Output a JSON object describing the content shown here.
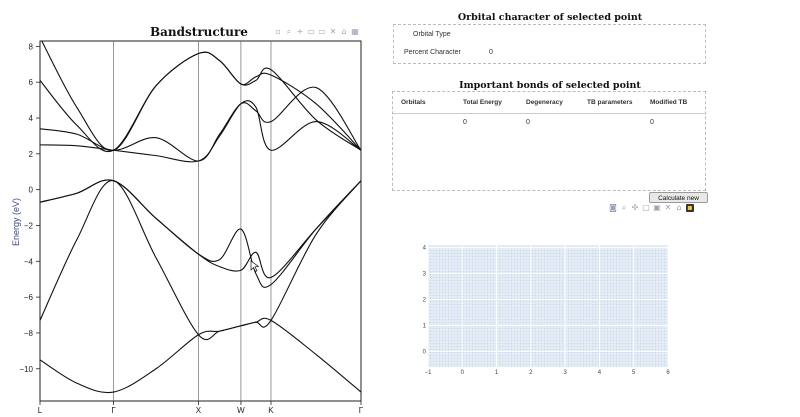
{
  "band_panel": {
    "title": "Bandstructure",
    "modebar_icons": [
      "camera-icon",
      "zoom-icon",
      "pan-icon",
      "zoom-in-icon",
      "zoom-out-icon",
      "autoscale-icon",
      "reset-axes-icon",
      "spike-icon"
    ]
  },
  "orbital_panel": {
    "title": "Orbital character of selected point",
    "rows": [
      {
        "label": "Orbital Type",
        "value": ""
      },
      {
        "label": "Percent Character",
        "value": "0"
      }
    ]
  },
  "bonds_panel": {
    "title": "Important bonds of selected point",
    "columns": [
      "Orbitals",
      "Total Energy",
      "Degeneracy",
      "TB parameters",
      "Modified TB"
    ],
    "rows": [
      [
        "",
        "0",
        "0",
        "",
        "0"
      ]
    ],
    "calc_button": "Calculate new"
  },
  "scatter_panel": {
    "modebar_icons": [
      "camera-icon",
      "zoom-icon",
      "pan-icon",
      "box-select-icon",
      "lasso-icon",
      "reset-icon",
      "autoscale-icon",
      "plotly-logo-icon"
    ]
  },
  "chart_data": [
    {
      "type": "line",
      "title": "Bandstructure",
      "xlabel": "",
      "ylabel": "Energy (eV)",
      "kpoint_labels": [
        "L",
        "Γ",
        "X",
        "W",
        "K",
        "Γ"
      ],
      "kpoint_x": [
        0,
        0.866,
        1.866,
        2.366,
        2.72,
        3.78
      ],
      "xlim": [
        0,
        3.78
      ],
      "ylim": [
        -11.8,
        8.3
      ],
      "yticks": [
        8,
        6,
        4,
        2,
        0,
        -2,
        -4,
        -6,
        -8,
        -10
      ],
      "ytick_labels": [
        "8",
        "6",
        "4",
        "2",
        "0",
        "−2",
        "−4",
        "−6",
        "−8",
        "−10"
      ],
      "series": [
        {
          "x": [
            0,
            0.433,
            0.866,
            1.366,
            1.866,
            2.116,
            2.366,
            2.543,
            2.72,
            3.25,
            3.78
          ],
          "y": [
            -9.5,
            -10.8,
            -11.3,
            -10.0,
            -8.1,
            -7.9,
            -7.6,
            -7.4,
            -7.3,
            -9.2,
            -11.3
          ]
        },
        {
          "x": [
            0,
            0.433,
            0.866,
            1.366,
            1.866,
            2.116,
            2.366,
            2.543,
            2.72,
            3.25,
            3.78
          ],
          "y": [
            -7.3,
            -2.8,
            0.5,
            -3.8,
            -8.1,
            -7.9,
            -7.6,
            -7.4,
            -7.3,
            -2.5,
            0.5
          ]
        },
        {
          "x": [
            0,
            0.433,
            0.866,
            1.366,
            1.866,
            2.116,
            2.366,
            2.543,
            2.72,
            3.25,
            3.78
          ],
          "y": [
            -0.7,
            -0.2,
            0.5,
            -1.6,
            -3.6,
            -4.3,
            -4.5,
            -3.5,
            -4.9,
            -2.2,
            0.5
          ]
        },
        {
          "x": [
            0,
            0.433,
            0.866,
            1.366,
            1.866,
            2.116,
            2.366,
            2.543,
            2.72,
            3.25,
            3.78
          ],
          "y": [
            -0.7,
            -0.2,
            0.5,
            -1.6,
            -3.6,
            -3.9,
            -2.2,
            -4.7,
            -5.3,
            -2.2,
            0.5
          ]
        },
        {
          "x": [
            0,
            0.433,
            0.866,
            1.366,
            1.866,
            2.116,
            2.366,
            2.543,
            2.72,
            3.25,
            3.78
          ],
          "y": [
            2.5,
            2.45,
            2.2,
            1.9,
            1.6,
            3.0,
            4.8,
            4.6,
            2.2,
            3.8,
            2.2
          ]
        },
        {
          "x": [
            0,
            0.433,
            0.866,
            1.366,
            1.866,
            2.116,
            2.366,
            2.543,
            2.72,
            3.25,
            3.78
          ],
          "y": [
            3.4,
            3.1,
            2.2,
            2.9,
            1.6,
            3.1,
            4.8,
            4.4,
            3.8,
            5.7,
            2.2
          ]
        },
        {
          "x": [
            0,
            0.433,
            0.866,
            1.366,
            1.866,
            2.116,
            2.366,
            2.543,
            2.72,
            3.25,
            3.78
          ],
          "y": [
            6.1,
            3.6,
            2.2,
            5.8,
            7.6,
            7.2,
            5.9,
            6.1,
            6.7,
            3.9,
            2.2
          ]
        },
        {
          "x": [
            0,
            0.433,
            0.866,
            1.366,
            1.866,
            2.116,
            2.366,
            2.543,
            2.72,
            3.25,
            3.78
          ],
          "y": [
            8.5,
            4.6,
            2.2,
            5.8,
            7.6,
            7.2,
            5.9,
            6.3,
            6.4,
            4.8,
            2.2
          ]
        }
      ]
    },
    {
      "type": "scatter",
      "title": "",
      "xlabel": "",
      "ylabel": "",
      "xlim": [
        -1,
        6
      ],
      "ylim": [
        -0.6,
        4.1
      ],
      "xticks": [
        -1,
        0,
        1,
        2,
        3,
        4,
        5,
        6
      ],
      "xtick_labels": [
        "−1",
        "0",
        "1",
        "2",
        "3",
        "4",
        "5",
        "6"
      ],
      "yticks": [
        0,
        1,
        2,
        3,
        4
      ],
      "ytick_labels": [
        "0",
        "1",
        "2",
        "3",
        "4"
      ],
      "series": []
    }
  ]
}
